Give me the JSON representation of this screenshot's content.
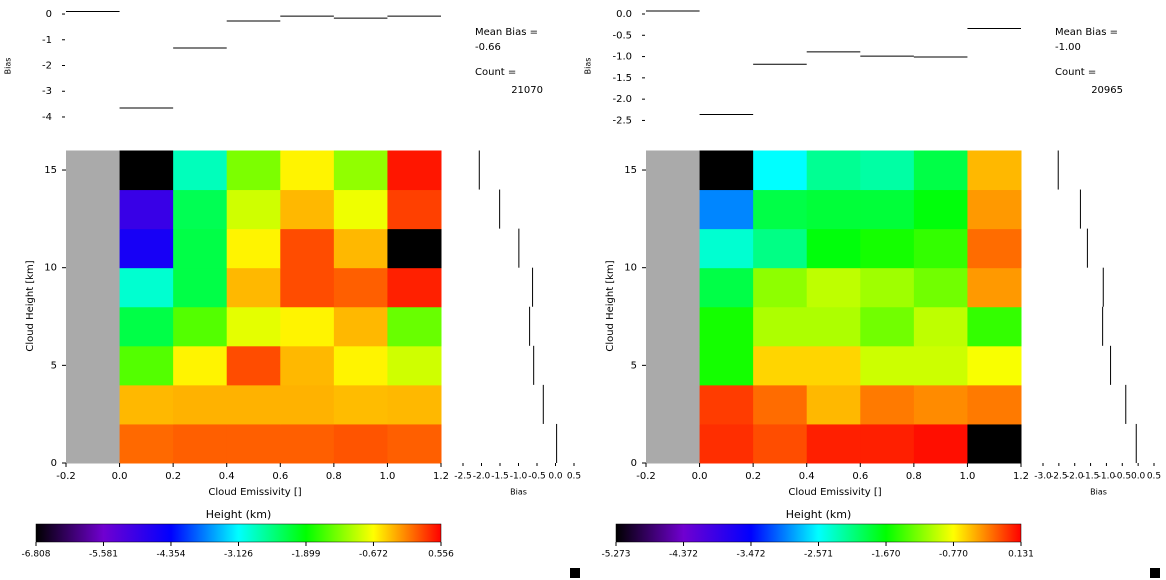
{
  "chart_data": [
    {
      "type": "heatmap",
      "xlabel": "Cloud Emissivity []",
      "ylabel": "Cloud Height [km]",
      "x_bins": [
        -0.2,
        0,
        0.2,
        0.4,
        0.6,
        0.8,
        1.0,
        1.2
      ],
      "y_bins": [
        0,
        2,
        4,
        6,
        8,
        10,
        12,
        14,
        16
      ],
      "xlim": [
        -0.2,
        1.2
      ],
      "ylim": [
        0,
        16
      ],
      "xticks": [
        -0.2,
        {
          "value": 0,
          "label": "0.0"
        },
        0.2,
        0.4,
        0.6,
        0.8,
        {
          "value": 1,
          "label": "1.0"
        },
        1.2
      ],
      "yticks": [
        0,
        5,
        10,
        15
      ],
      "null_color": "#aaaaaa",
      "colormap": [
        "#000000",
        "#7000d0",
        "#0000ff",
        "#00ffff",
        "#00ff00",
        "#ffff00",
        "#ff0000"
      ],
      "values": [
        [
          null,
          0.05,
          0.1,
          0.1,
          0.1,
          0.15,
          0.1
        ],
        [
          null,
          -0.33,
          -0.3,
          -0.3,
          -0.3,
          -0.35,
          -0.33
        ],
        [
          null,
          -1.5,
          -0.62,
          0.19,
          -0.33,
          -0.62,
          -0.9
        ],
        [
          null,
          -2.24,
          -1.5,
          -0.8,
          -0.62,
          -0.33,
          -1.4
        ],
        [
          null,
          -2.9,
          -2.24,
          -0.33,
          0.19,
          0.1,
          0.4
        ],
        [
          null,
          -4.6,
          -2.24,
          -0.62,
          0.19,
          -0.33,
          -6.808
        ],
        [
          null,
          -4.97,
          -2.3,
          -0.9,
          -0.33,
          -0.75,
          0.25
        ],
        [
          null,
          -6.808,
          -2.8,
          -1.3,
          -0.62,
          -1.2,
          0.45
        ]
      ],
      "colorbar": {
        "label": "Height (km)",
        "lim": [
          -6.808,
          0.556
        ],
        "ticks": [
          -6.808,
          -5.581,
          -4.354,
          -3.126,
          -1.899,
          -0.672,
          0.556
        ]
      },
      "top_bias": {
        "ylabel": "Bias",
        "ylim": [
          -4.3,
          0.25
        ],
        "yticks": [
          0,
          -1,
          -2,
          -3,
          -4
        ],
        "values": [
          0.1,
          -3.65,
          -1.32,
          -0.27,
          -0.08,
          -0.16,
          -0.08
        ]
      },
      "side_bias": {
        "xlabel": "Bias",
        "xlim": [
          -2.5,
          0.5
        ],
        "xticks": [
          -2.5,
          {
            "value": -2,
            "label": "-2.0"
          },
          -1.5,
          {
            "value": -1,
            "label": "-1.0"
          },
          -0.5,
          {
            "value": 0,
            "label": "0.0"
          },
          0.5
        ],
        "values": [
          0.03,
          -0.33,
          -0.59,
          -0.7,
          -0.62,
          -0.99,
          -1.51,
          -2.06
        ]
      },
      "mean_bias_title": "Mean Bias =",
      "mean_bias": -0.66,
      "count_title": "Count =",
      "count": 21070
    },
    {
      "type": "heatmap",
      "xlabel": "Cloud Emissivity []",
      "ylabel": "Cloud Height [km]",
      "x_bins": [
        -0.2,
        0,
        0.2,
        0.4,
        0.6,
        0.8,
        1.0,
        1.2
      ],
      "y_bins": [
        0,
        2,
        4,
        6,
        8,
        10,
        12,
        14,
        16
      ],
      "xlim": [
        -0.2,
        1.2
      ],
      "ylim": [
        0,
        16
      ],
      "xticks": [
        -0.2,
        {
          "value": 0,
          "label": "0.0"
        },
        0.2,
        0.4,
        0.6,
        0.8,
        {
          "value": 1,
          "label": "1.0"
        },
        1.2
      ],
      "yticks": [
        0,
        5,
        10,
        15
      ],
      "null_color": "#aaaaaa",
      "colormap": [
        "#000000",
        "#7000d0",
        "#0000ff",
        "#00ffff",
        "#00ff00",
        "#ffff00",
        "#ff0000"
      ],
      "values": [
        [
          null,
          -0.03,
          -0.14,
          0.02,
          0.02,
          0.08,
          -5.273
        ],
        [
          null,
          -0.08,
          -0.25,
          -0.52,
          -0.3,
          -0.36,
          -0.3
        ],
        [
          null,
          -1.6,
          -0.62,
          -0.62,
          -0.95,
          -0.95,
          -0.79
        ],
        [
          null,
          -1.6,
          -1.06,
          -1.06,
          -1.27,
          -1.0,
          -1.49
        ],
        [
          null,
          -1.92,
          -1.17,
          -1.0,
          -1.11,
          -1.27,
          -0.41
        ],
        [
          null,
          -2.41,
          -2.14,
          -1.71,
          -1.6,
          -1.49,
          -0.25
        ],
        [
          null,
          -3.0,
          -1.92,
          -1.87,
          -1.87,
          -1.71,
          -0.41
        ],
        [
          null,
          -5.273,
          -2.57,
          -2.19,
          -2.25,
          -1.92,
          -0.52
        ]
      ],
      "colorbar": {
        "label": "Height (km)",
        "lim": [
          -5.273,
          0.131
        ],
        "ticks": [
          -5.273,
          -4.372,
          -3.472,
          -2.571,
          {
            "value": -1.67,
            "label": "-1.670"
          },
          {
            "value": -0.77,
            "label": "-0.770"
          },
          0.131
        ]
      },
      "top_bias": {
        "ylabel": "Bias",
        "ylim": [
          -2.6,
          0.15
        ],
        "yticks": [
          {
            "value": 0,
            "label": "0.0"
          },
          -0.5,
          {
            "value": -1,
            "label": "-1.0"
          },
          -1.5,
          {
            "value": -2,
            "label": "-2.0"
          },
          -2.5
        ],
        "values": [
          0.07,
          -2.36,
          -1.18,
          -0.89,
          -0.99,
          -1.01,
          -0.34
        ]
      },
      "side_bias": {
        "xlabel": "Bias",
        "xlim": [
          -3,
          0.5
        ],
        "xticks": [
          {
            "value": -3,
            "label": "-3.0"
          },
          -2.5,
          {
            "value": -2,
            "label": "-2.0"
          },
          -1.5,
          {
            "value": -1,
            "label": "-1.0"
          },
          -0.5,
          {
            "value": 0,
            "label": "0.0"
          },
          0.5
        ],
        "values": [
          -0.06,
          -0.39,
          -0.87,
          -1.12,
          -1.1,
          -1.6,
          -1.82,
          -2.52
        ]
      },
      "mean_bias_title": "Mean Bias =",
      "mean_bias": -1,
      "mean_bias_label": "-1.00",
      "count_title": "Count =",
      "count": 20965
    }
  ]
}
